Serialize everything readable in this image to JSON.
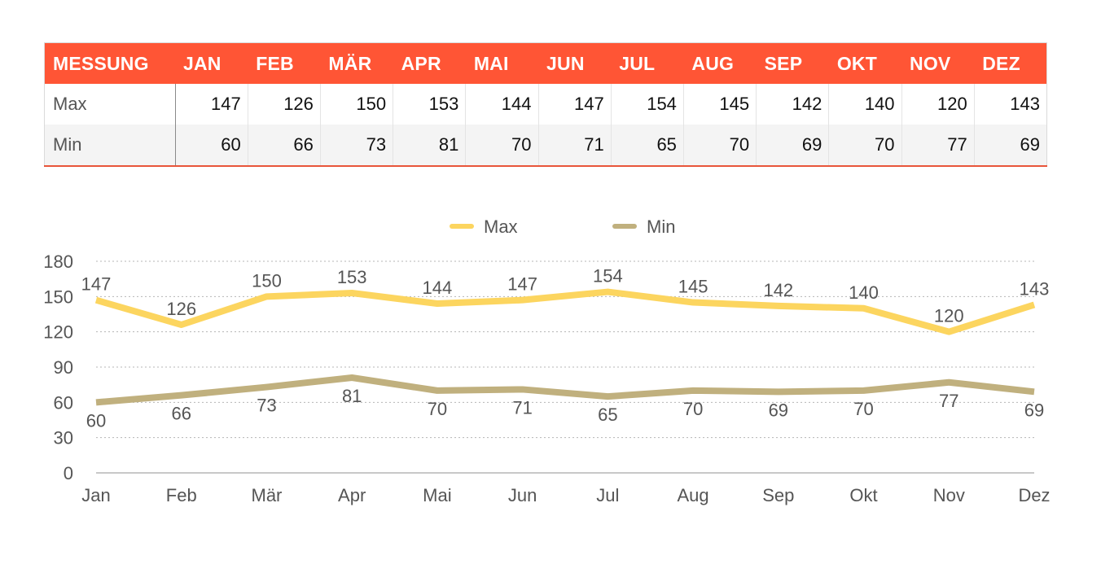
{
  "table": {
    "header_label": "MESSUNG",
    "months": [
      "JAN",
      "FEB",
      "MÄR",
      "APR",
      "MAI",
      "JUN",
      "JUL",
      "AUG",
      "SEP",
      "OKT",
      "NOV",
      "DEZ"
    ],
    "rows": [
      {
        "label": "Max",
        "values": [
          "147",
          "126",
          "150",
          "153",
          "144",
          "147",
          "154",
          "145",
          "142",
          "140",
          "120",
          "143"
        ]
      },
      {
        "label": "Min",
        "values": [
          "60",
          "66",
          "73",
          "81",
          "70",
          "71",
          "65",
          "70",
          "69",
          "70",
          "77",
          "69"
        ]
      }
    ]
  },
  "colors": {
    "header_bg": "#ff5535",
    "max_line": "#fcd55f",
    "min_line": "#c0b07e"
  },
  "chart_data": {
    "type": "line",
    "categories": [
      "Jan",
      "Feb",
      "Mär",
      "Apr",
      "Mai",
      "Jun",
      "Jul",
      "Aug",
      "Sep",
      "Okt",
      "Nov",
      "Dez"
    ],
    "series": [
      {
        "name": "Max",
        "values": [
          147,
          126,
          150,
          153,
          144,
          147,
          154,
          145,
          142,
          140,
          120,
          143
        ],
        "color": "#fcd55f"
      },
      {
        "name": "Min",
        "values": [
          60,
          66,
          73,
          81,
          70,
          71,
          65,
          70,
          69,
          70,
          77,
          69
        ],
        "color": "#c0b07e"
      }
    ],
    "ylim": [
      0,
      180
    ],
    "yticks": [
      0,
      30,
      60,
      90,
      120,
      150,
      180
    ],
    "grid": true,
    "legend": "top-center",
    "title": "",
    "xlabel": "",
    "ylabel": ""
  }
}
